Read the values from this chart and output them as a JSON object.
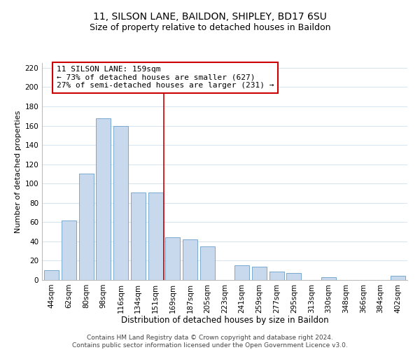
{
  "title": "11, SILSON LANE, BAILDON, SHIPLEY, BD17 6SU",
  "subtitle": "Size of property relative to detached houses in Baildon",
  "xlabel": "Distribution of detached houses by size in Baildon",
  "ylabel": "Number of detached properties",
  "bar_labels": [
    "44sqm",
    "62sqm",
    "80sqm",
    "98sqm",
    "116sqm",
    "134sqm",
    "151sqm",
    "169sqm",
    "187sqm",
    "205sqm",
    "223sqm",
    "241sqm",
    "259sqm",
    "277sqm",
    "295sqm",
    "313sqm",
    "330sqm",
    "348sqm",
    "366sqm",
    "384sqm",
    "402sqm"
  ],
  "bar_values": [
    10,
    62,
    110,
    168,
    160,
    91,
    91,
    44,
    42,
    35,
    0,
    15,
    14,
    9,
    7,
    0,
    3,
    0,
    0,
    0,
    4
  ],
  "bar_color": "#c8d9ee",
  "bar_edge_color": "#7aa8ce",
  "vline_x": 6.5,
  "vline_color": "#cc0000",
  "annotation_text": "11 SILSON LANE: 159sqm\n← 73% of detached houses are smaller (627)\n27% of semi-detached houses are larger (231) →",
  "annotation_box_fc": "white",
  "annotation_box_ec": "#cc0000",
  "ylim": [
    0,
    225
  ],
  "yticks": [
    0,
    20,
    40,
    60,
    80,
    100,
    120,
    140,
    160,
    180,
    200,
    220
  ],
  "footer_text": "Contains HM Land Registry data © Crown copyright and database right 2024.\nContains public sector information licensed under the Open Government Licence v3.0.",
  "title_fontsize": 10,
  "subtitle_fontsize": 9,
  "xlabel_fontsize": 8.5,
  "ylabel_fontsize": 8,
  "tick_fontsize": 7.5,
  "annotation_fontsize": 8,
  "footer_fontsize": 6.5,
  "grid_color": "#d0e0f0"
}
